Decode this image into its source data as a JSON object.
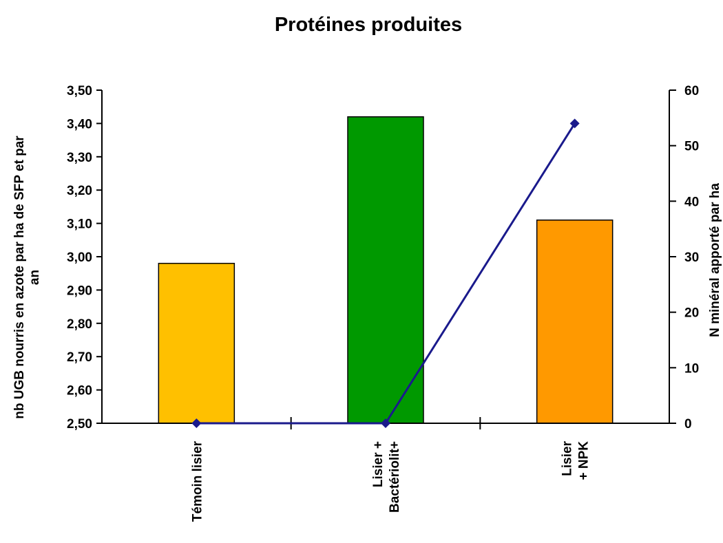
{
  "chart_data": {
    "type": "bar",
    "title": "Protéines produites",
    "categories": [
      "Témoin lisier",
      "Lisier +\nBactériolit+",
      "Lisier\n+ NPK"
    ],
    "ylabel": "nb UGB nourris en azote par ha de SFP et par an",
    "y2label": "N minéral apporté par ha",
    "ylim": [
      2.5,
      3.5
    ],
    "y2lim": [
      0,
      60
    ],
    "yticks": [
      "2,50",
      "2,60",
      "2,70",
      "2,80",
      "2,90",
      "3,00",
      "3,10",
      "3,20",
      "3,30",
      "3,40",
      "3,50"
    ],
    "y2ticks": [
      "0",
      "10",
      "20",
      "30",
      "40",
      "50",
      "60"
    ],
    "grid": false,
    "legend": "none",
    "series": [
      {
        "kind": "bar",
        "axis": "left",
        "values": [
          2.98,
          3.42,
          3.11
        ],
        "colors": [
          "#FFC000",
          "#009900",
          "#FF9900"
        ]
      },
      {
        "kind": "line",
        "axis": "right",
        "values": [
          0,
          0,
          54
        ],
        "color": "#1A1A8C"
      }
    ]
  }
}
